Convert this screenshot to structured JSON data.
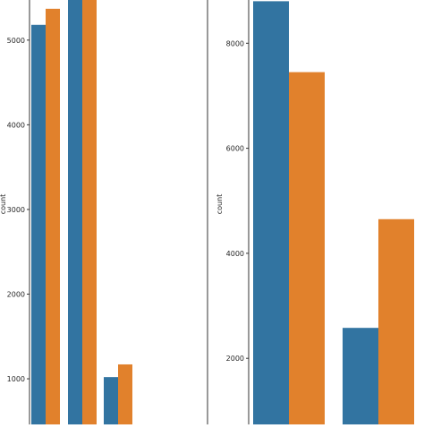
{
  "chart_data": [
    {
      "type": "bar",
      "title": "",
      "xlabel": "",
      "ylabel": "count",
      "ylim": [
        0,
        5500
      ],
      "grid": false,
      "yticks": [
        "1000",
        "2000",
        "3000",
        "4000",
        "5000"
      ],
      "categories": [
        "",
        "",
        ""
      ],
      "series": [
        {
          "color": "#3274a1",
          "values": [
            5180,
            5500,
            1020
          ]
        },
        {
          "color": "#e1812c",
          "values": [
            5370,
            5500,
            1170
          ]
        }
      ]
    },
    {
      "type": "bar",
      "title": "",
      "xlabel": "",
      "ylabel": "count",
      "ylim": [
        1250,
        8800
      ],
      "grid": false,
      "yticks": [
        "2000",
        "4000",
        "6000",
        "8000"
      ],
      "categories": [
        "",
        ""
      ],
      "series": [
        {
          "color": "#3274a1",
          "values": [
            8800,
            2580
          ]
        },
        {
          "color": "#e1812c",
          "values": [
            7450,
            4650
          ]
        }
      ]
    }
  ]
}
